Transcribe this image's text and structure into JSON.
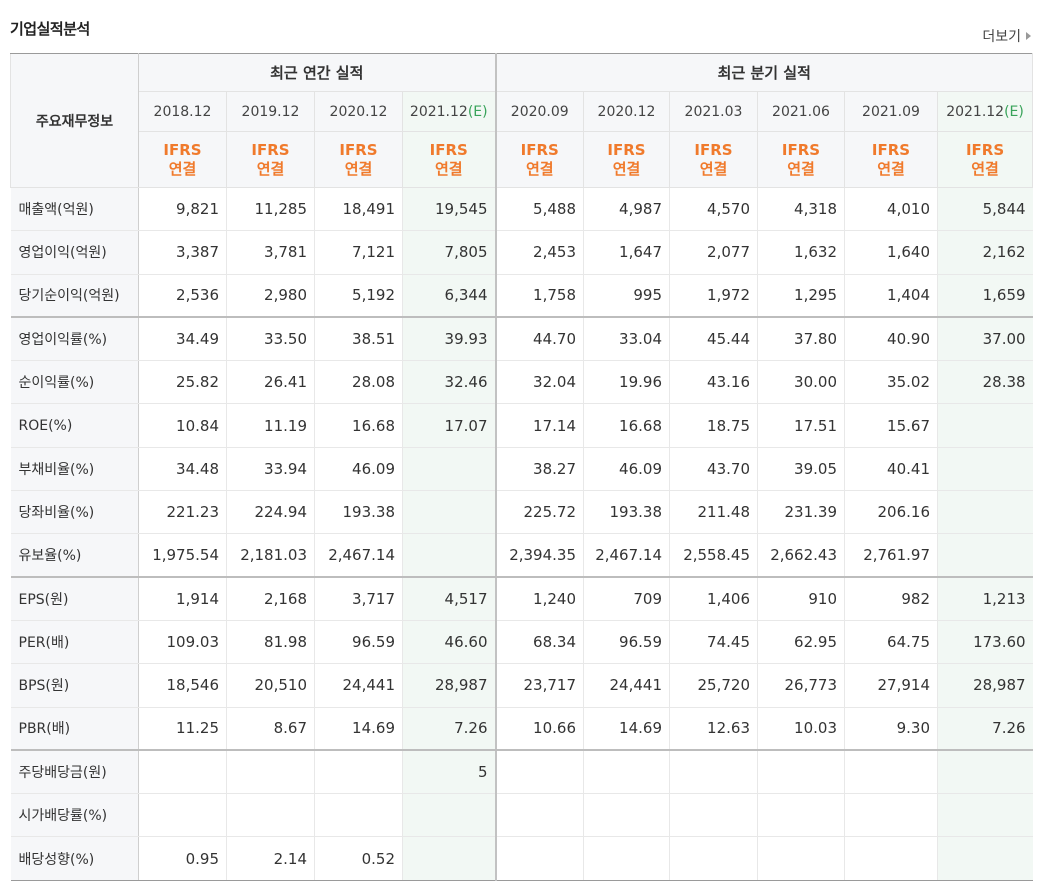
{
  "section": {
    "title": "기업실적분석",
    "more_label": "더보기"
  },
  "header": {
    "row_label": "주요재무정보",
    "annual_group": "최근 연간 실적",
    "quarter_group": "최근 분기 실적",
    "columns": [
      {
        "date": "2018.12",
        "est": ""
      },
      {
        "date": "2019.12",
        "est": ""
      },
      {
        "date": "2020.12",
        "est": ""
      },
      {
        "date": "2021.12",
        "est": "(E)"
      },
      {
        "date": "2020.09",
        "est": ""
      },
      {
        "date": "2020.12",
        "est": ""
      },
      {
        "date": "2021.03",
        "est": ""
      },
      {
        "date": "2021.06",
        "est": ""
      },
      {
        "date": "2021.09",
        "est": ""
      },
      {
        "date": "2021.12",
        "est": "(E)"
      }
    ],
    "ifrs_top": "IFRS",
    "ifrs_bottom": "연결"
  },
  "rows": [
    {
      "label": "매출액(억원)",
      "values": [
        "9,821",
        "11,285",
        "18,491",
        "19,545",
        "5,488",
        "4,987",
        "4,570",
        "4,318",
        "4,010",
        "5,844"
      ]
    },
    {
      "label": "영업이익(억원)",
      "values": [
        "3,387",
        "3,781",
        "7,121",
        "7,805",
        "2,453",
        "1,647",
        "2,077",
        "1,632",
        "1,640",
        "2,162"
      ]
    },
    {
      "label": "당기순이익(억원)",
      "values": [
        "2,536",
        "2,980",
        "5,192",
        "6,344",
        "1,758",
        "995",
        "1,972",
        "1,295",
        "1,404",
        "1,659"
      ]
    },
    {
      "label": "영업이익률(%)",
      "values": [
        "34.49",
        "33.50",
        "38.51",
        "39.93",
        "44.70",
        "33.04",
        "45.44",
        "37.80",
        "40.90",
        "37.00"
      ]
    },
    {
      "label": "순이익률(%)",
      "values": [
        "25.82",
        "26.41",
        "28.08",
        "32.46",
        "32.04",
        "19.96",
        "43.16",
        "30.00",
        "35.02",
        "28.38"
      ]
    },
    {
      "label": "ROE(%)",
      "values": [
        "10.84",
        "11.19",
        "16.68",
        "17.07",
        "17.14",
        "16.68",
        "18.75",
        "17.51",
        "15.67",
        ""
      ]
    },
    {
      "label": "부채비율(%)",
      "values": [
        "34.48",
        "33.94",
        "46.09",
        "",
        "38.27",
        "46.09",
        "43.70",
        "39.05",
        "40.41",
        ""
      ]
    },
    {
      "label": "당좌비율(%)",
      "values": [
        "221.23",
        "224.94",
        "193.38",
        "",
        "225.72",
        "193.38",
        "211.48",
        "231.39",
        "206.16",
        ""
      ]
    },
    {
      "label": "유보율(%)",
      "values": [
        "1,975.54",
        "2,181.03",
        "2,467.14",
        "",
        "2,394.35",
        "2,467.14",
        "2,558.45",
        "2,662.43",
        "2,761.97",
        ""
      ]
    },
    {
      "label": "EPS(원)",
      "values": [
        "1,914",
        "2,168",
        "3,717",
        "4,517",
        "1,240",
        "709",
        "1,406",
        "910",
        "982",
        "1,213"
      ]
    },
    {
      "label": "PER(배)",
      "values": [
        "109.03",
        "81.98",
        "96.59",
        "46.60",
        "68.34",
        "96.59",
        "74.45",
        "62.95",
        "64.75",
        "173.60"
      ]
    },
    {
      "label": "BPS(원)",
      "values": [
        "18,546",
        "20,510",
        "24,441",
        "28,987",
        "23,717",
        "24,441",
        "25,720",
        "26,773",
        "27,914",
        "28,987"
      ]
    },
    {
      "label": "PBR(배)",
      "values": [
        "11.25",
        "8.67",
        "14.69",
        "7.26",
        "10.66",
        "14.69",
        "12.63",
        "10.03",
        "9.30",
        "7.26"
      ]
    },
    {
      "label": "주당배당금(원)",
      "values": [
        "",
        "",
        "",
        "5",
        "",
        "",
        "",
        "",
        "",
        ""
      ]
    },
    {
      "label": "시가배당률(%)",
      "values": [
        "",
        "",
        "",
        "",
        "",
        "",
        "",
        "",
        "",
        ""
      ]
    },
    {
      "label": "배당성향(%)",
      "values": [
        "0.95",
        "2.14",
        "0.52",
        "",
        "",
        "",
        "",
        "",
        "",
        ""
      ]
    }
  ]
}
